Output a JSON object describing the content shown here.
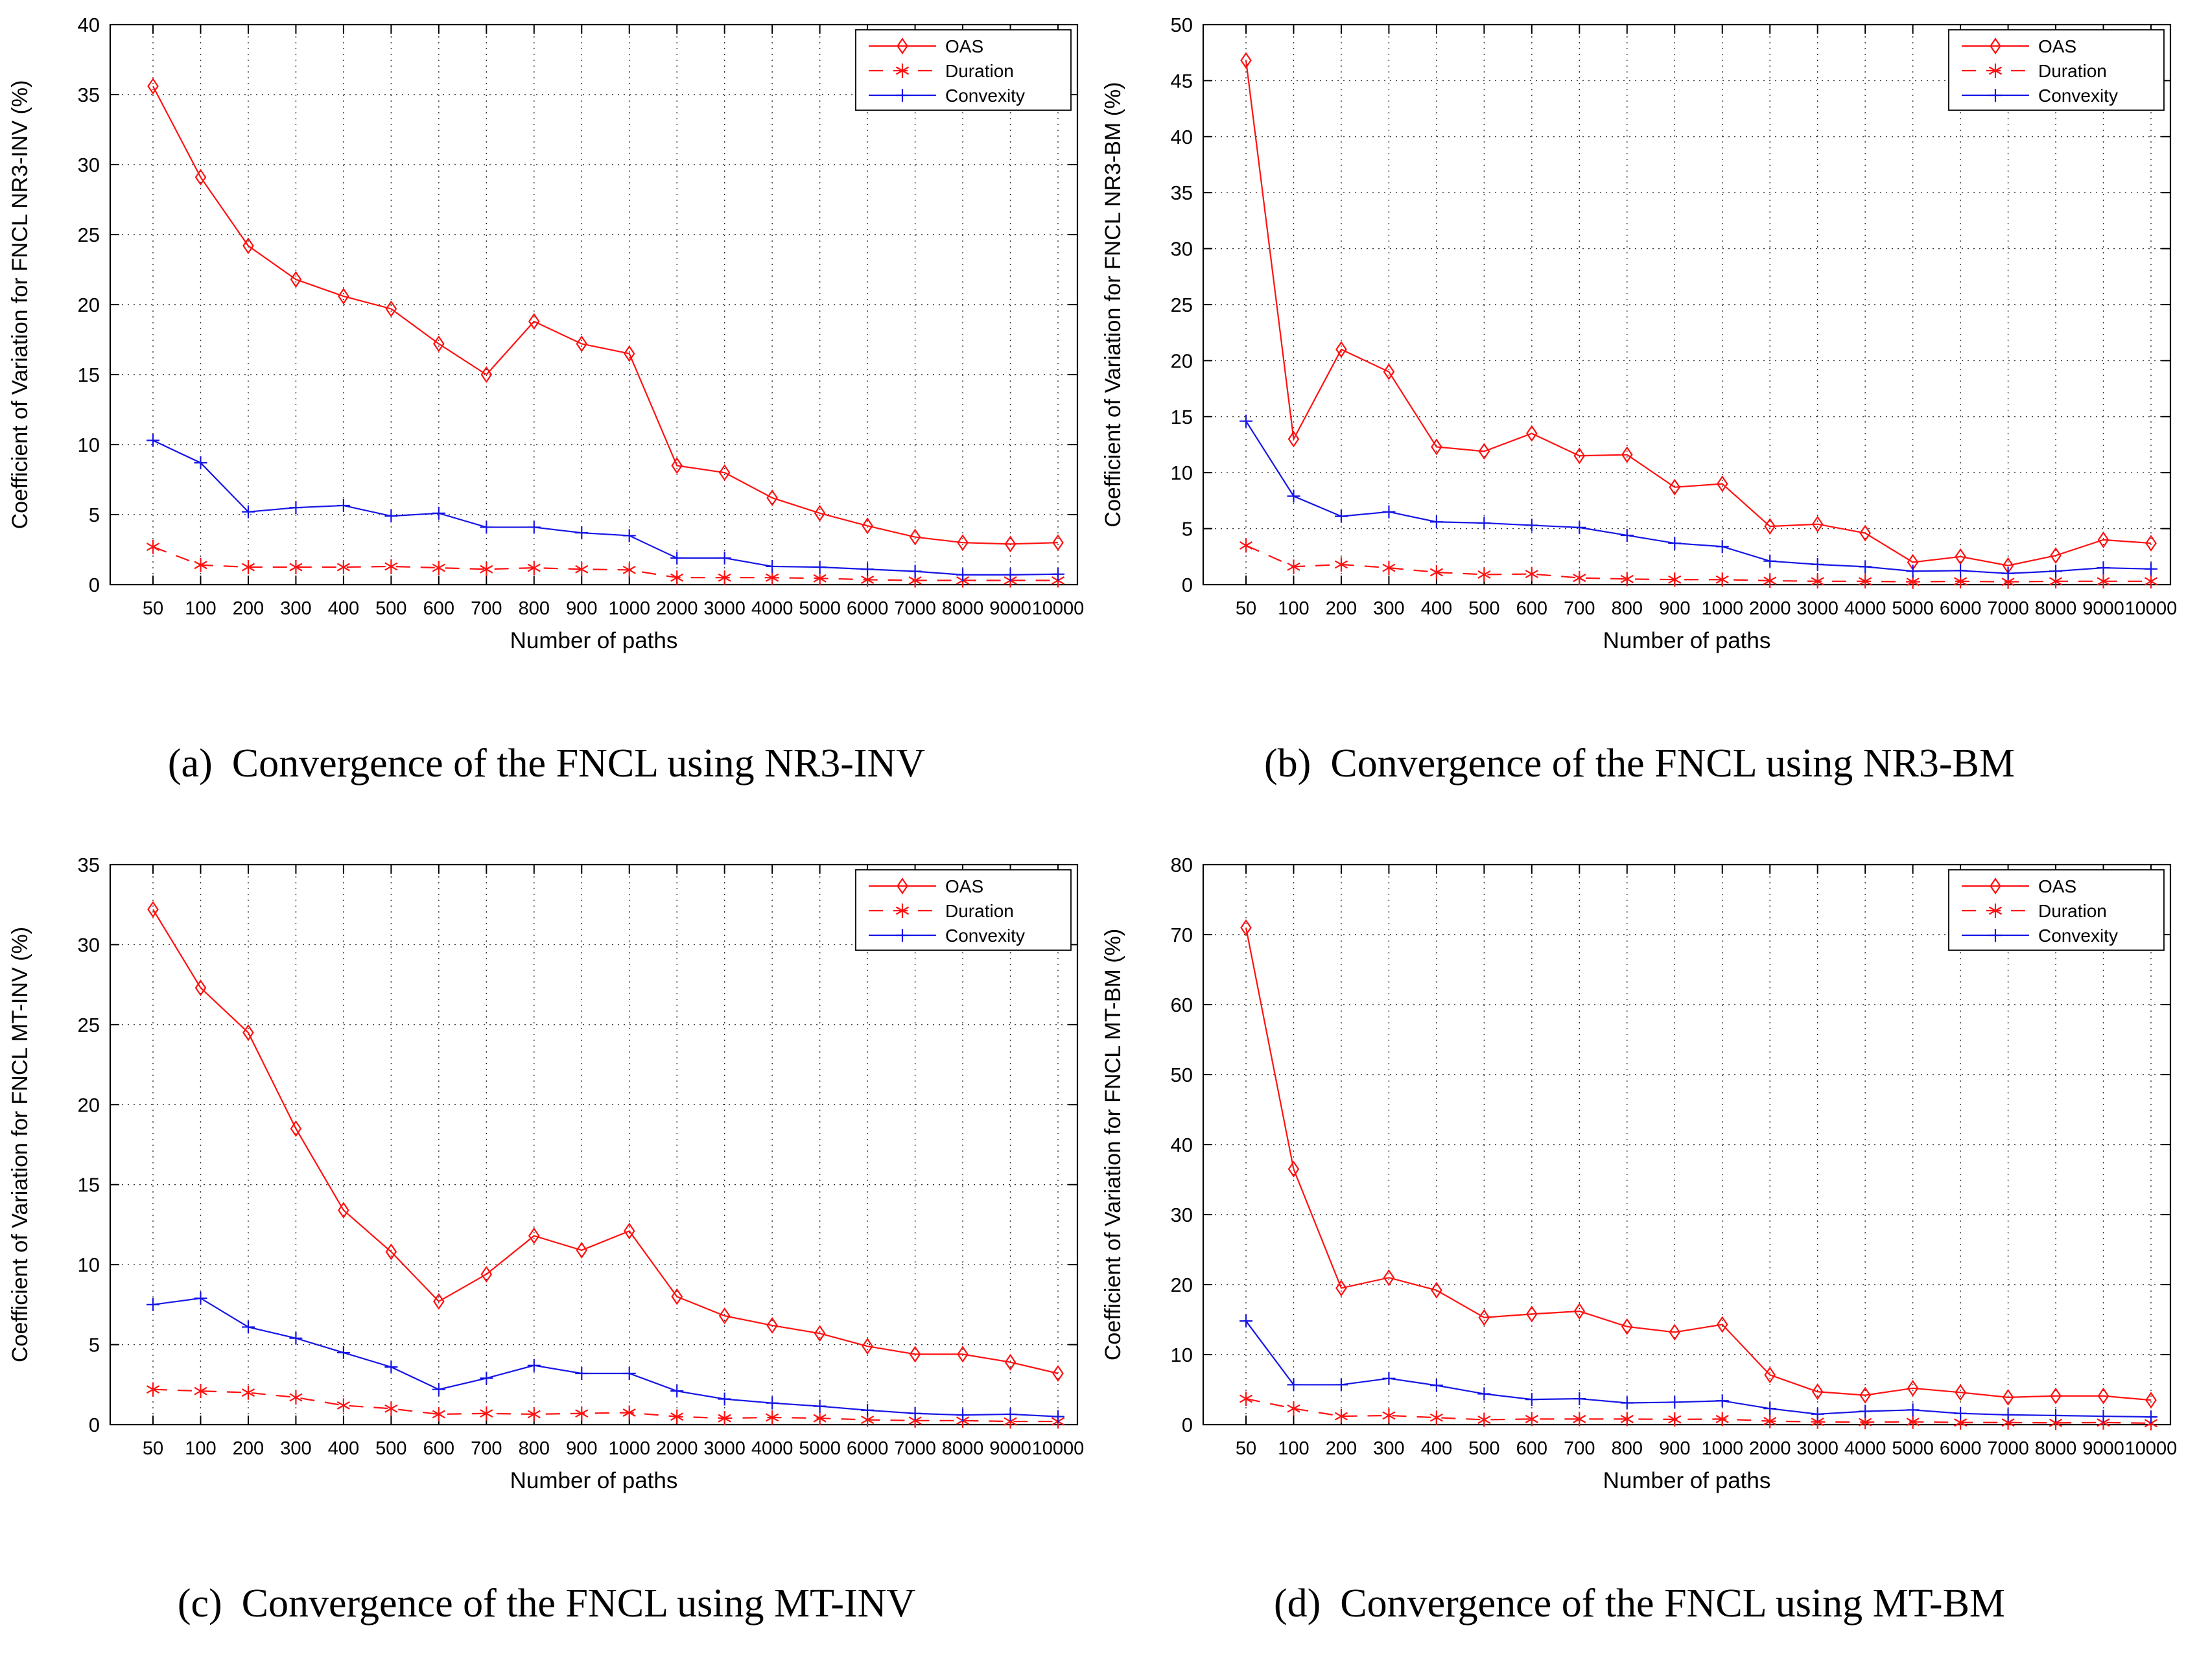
{
  "figure": {
    "background": "#ffffff",
    "axis_color": "#000000",
    "grid_color": "#333333",
    "xlabel": "Number of paths",
    "legend": [
      {
        "label": "OAS",
        "color": "#ff1010",
        "marker": "diamond",
        "dash": "solid"
      },
      {
        "label": "Duration",
        "color": "#ff1010",
        "marker": "asterisk",
        "dash": "dashed"
      },
      {
        "label": "Convexity",
        "color": "#1515e6",
        "marker": "plus",
        "dash": "solid"
      }
    ],
    "legend_position": "top-right"
  },
  "chart_data": [
    {
      "id": "a",
      "type": "line",
      "caption_tag": "(a)",
      "caption": "Convergence of the FNCL using NR3-INV",
      "xlabel": "Number of paths",
      "ylabel": "Coefficient of Variation for FNCL NR3-INV (%)",
      "ylim": [
        0,
        40
      ],
      "ytick_step": 5,
      "grid": true,
      "categories": [
        "50",
        "100",
        "200",
        "300",
        "400",
        "500",
        "600",
        "700",
        "800",
        "900",
        "1000",
        "2000",
        "3000",
        "4000",
        "5000",
        "6000",
        "7000",
        "8000",
        "9000",
        "10000"
      ],
      "series": [
        {
          "name": "OAS",
          "values": [
            35.6,
            29.1,
            24.2,
            21.8,
            20.6,
            19.7,
            17.2,
            15.0,
            18.8,
            17.2,
            16.5,
            8.5,
            8.0,
            6.2,
            5.1,
            4.2,
            3.4,
            3.0,
            2.9,
            3.0
          ]
        },
        {
          "name": "Duration",
          "values": [
            2.7,
            1.4,
            1.25,
            1.25,
            1.25,
            1.3,
            1.2,
            1.1,
            1.2,
            1.1,
            1.05,
            0.5,
            0.5,
            0.5,
            0.45,
            0.35,
            0.3,
            0.3,
            0.3,
            0.3
          ]
        },
        {
          "name": "Convexity",
          "values": [
            10.3,
            8.7,
            5.2,
            5.5,
            5.65,
            4.9,
            5.1,
            4.1,
            4.1,
            3.7,
            3.5,
            1.9,
            1.9,
            1.3,
            1.25,
            1.1,
            0.95,
            0.7,
            0.7,
            0.75
          ]
        }
      ]
    },
    {
      "id": "b",
      "type": "line",
      "caption_tag": "(b)",
      "caption": "Convergence of the FNCL using NR3-BM",
      "xlabel": "Number of paths",
      "ylabel": "Coefficient of Variation for FNCL NR3-BM (%)",
      "ylim": [
        0,
        50
      ],
      "ytick_step": 5,
      "grid": true,
      "categories": [
        "50",
        "100",
        "200",
        "300",
        "400",
        "500",
        "600",
        "700",
        "800",
        "900",
        "1000",
        "2000",
        "3000",
        "4000",
        "5000",
        "6000",
        "7000",
        "8000",
        "9000",
        "10000"
      ],
      "series": [
        {
          "name": "OAS",
          "values": [
            46.8,
            13.0,
            21.0,
            19.0,
            12.3,
            11.9,
            13.5,
            11.5,
            11.6,
            8.7,
            9.0,
            5.2,
            5.4,
            4.6,
            2.0,
            2.5,
            1.7,
            2.6,
            4.0,
            3.7
          ]
        },
        {
          "name": "Duration",
          "values": [
            3.5,
            1.6,
            1.8,
            1.5,
            1.1,
            0.9,
            0.95,
            0.6,
            0.5,
            0.45,
            0.45,
            0.35,
            0.3,
            0.3,
            0.25,
            0.3,
            0.25,
            0.3,
            0.3,
            0.3
          ]
        },
        {
          "name": "Convexity",
          "values": [
            14.6,
            7.9,
            6.1,
            6.5,
            5.6,
            5.5,
            5.3,
            5.1,
            4.4,
            3.7,
            3.4,
            2.1,
            1.8,
            1.6,
            1.2,
            1.25,
            1.0,
            1.2,
            1.5,
            1.4
          ]
        }
      ]
    },
    {
      "id": "c",
      "type": "line",
      "caption_tag": "(c)",
      "caption": "Convergence of the FNCL using MT-INV",
      "xlabel": "Number of paths",
      "ylabel": "Coefficient of Variation for FNCL MT-INV (%)",
      "ylim": [
        0,
        35
      ],
      "ytick_step": 5,
      "grid": true,
      "categories": [
        "50",
        "100",
        "200",
        "300",
        "400",
        "500",
        "600",
        "700",
        "800",
        "900",
        "1000",
        "2000",
        "3000",
        "4000",
        "5000",
        "6000",
        "7000",
        "8000",
        "9000",
        "10000"
      ],
      "series": [
        {
          "name": "OAS",
          "values": [
            32.2,
            27.3,
            24.5,
            18.5,
            13.4,
            10.8,
            7.7,
            9.4,
            11.8,
            10.9,
            12.1,
            8.0,
            6.8,
            6.2,
            5.7,
            4.9,
            4.4,
            4.4,
            3.9,
            3.2
          ]
        },
        {
          "name": "Duration",
          "values": [
            2.2,
            2.1,
            2.0,
            1.7,
            1.2,
            1.0,
            0.65,
            0.7,
            0.65,
            0.7,
            0.75,
            0.5,
            0.4,
            0.45,
            0.4,
            0.3,
            0.25,
            0.25,
            0.2,
            0.2
          ]
        },
        {
          "name": "Convexity",
          "values": [
            7.5,
            7.9,
            6.1,
            5.4,
            4.5,
            3.6,
            2.2,
            2.9,
            3.7,
            3.2,
            3.2,
            2.1,
            1.6,
            1.35,
            1.15,
            0.9,
            0.7,
            0.6,
            0.65,
            0.5
          ]
        }
      ]
    },
    {
      "id": "d",
      "type": "line",
      "caption_tag": "(d)",
      "caption": "Convergence of the FNCL using MT-BM",
      "xlabel": "Number of paths",
      "ylabel": "Coefficient of Variation for FNCL MT-BM (%)",
      "ylim": [
        0,
        80
      ],
      "ytick_step": 10,
      "grid": true,
      "categories": [
        "50",
        "100",
        "200",
        "300",
        "400",
        "500",
        "600",
        "700",
        "800",
        "900",
        "1000",
        "2000",
        "3000",
        "4000",
        "5000",
        "6000",
        "7000",
        "8000",
        "9000",
        "10000"
      ],
      "series": [
        {
          "name": "OAS",
          "values": [
            71.0,
            36.5,
            19.5,
            21.0,
            19.2,
            15.3,
            15.8,
            16.2,
            14.0,
            13.2,
            14.3,
            7.1,
            4.7,
            4.2,
            5.2,
            4.6,
            3.9,
            4.1,
            4.1,
            3.5
          ]
        },
        {
          "name": "Duration",
          "values": [
            3.7,
            2.3,
            1.2,
            1.3,
            1.0,
            0.7,
            0.8,
            0.8,
            0.8,
            0.75,
            0.8,
            0.5,
            0.4,
            0.35,
            0.4,
            0.3,
            0.3,
            0.25,
            0.3,
            0.2
          ]
        },
        {
          "name": "Convexity",
          "values": [
            14.8,
            5.7,
            5.7,
            6.6,
            5.6,
            4.4,
            3.6,
            3.7,
            3.1,
            3.2,
            3.4,
            2.3,
            1.5,
            1.9,
            2.1,
            1.6,
            1.4,
            1.3,
            1.2,
            1.1
          ]
        }
      ]
    }
  ]
}
